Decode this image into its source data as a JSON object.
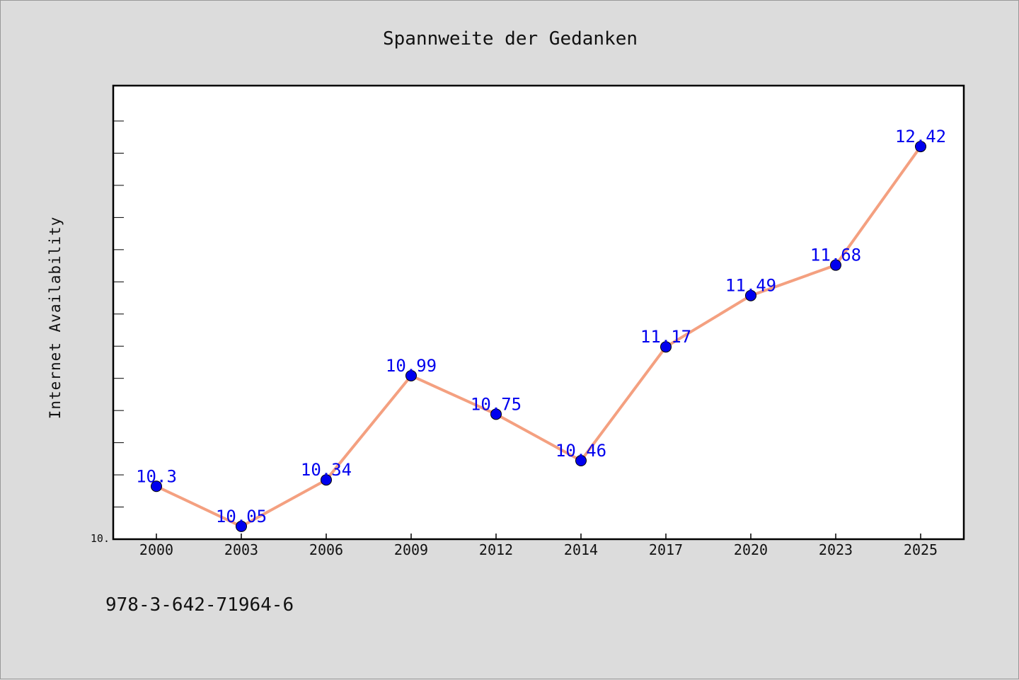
{
  "chart_data": {
    "type": "line",
    "title": "Spannweite der Gedanken",
    "xlabel": "",
    "ylabel": "Internet Availability",
    "categories": [
      "2000",
      "2003",
      "2006",
      "2009",
      "2012",
      "2014",
      "2017",
      "2020",
      "2023",
      "2025"
    ],
    "series": [
      {
        "values": [
          10.3,
          10.05,
          10.34,
          10.99,
          10.75,
          10.46,
          11.17,
          11.49,
          11.68,
          12.42
        ]
      }
    ],
    "data_labels": [
      "10.3",
      "10.05",
      "10.34",
      "10.99",
      "10.75",
      "10.46",
      "11.17",
      "11.49",
      "11.68",
      "12.42"
    ],
    "y_tick_label": "10.",
    "ylim": [
      9.97,
      12.8
    ],
    "grid": false,
    "line_color": "#f4a080",
    "marker_color": "#0000ee",
    "label_color": "#0000ee"
  },
  "footer": {
    "isbn": "978-3-642-71964-6"
  }
}
